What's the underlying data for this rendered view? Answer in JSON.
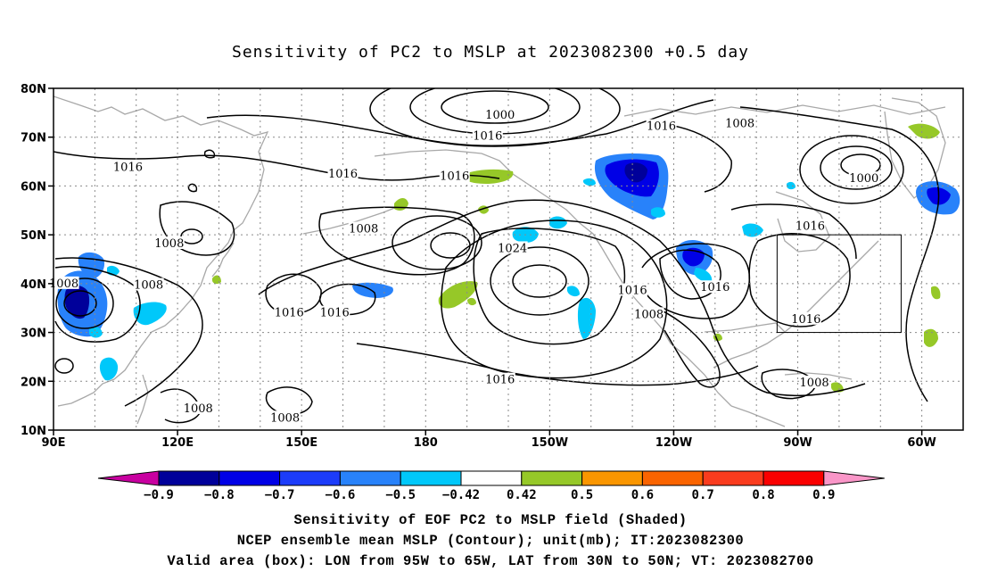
{
  "title": "Sensitivity of PC2 to MSLP at 2023082300 +0.5 day",
  "map": {
    "lat_labels": [
      "80N",
      "70N",
      "60N",
      "50N",
      "40N",
      "30N",
      "20N",
      "10N"
    ],
    "lon_labels": [
      "90E",
      "120E",
      "150E",
      "180",
      "150W",
      "120W",
      "90W",
      "60W"
    ],
    "lon_range_deg_east": [
      90,
      310
    ],
    "lat_range": [
      10,
      80
    ],
    "grid": "dotted every 10 degrees",
    "coastline_color": "#a8a8a8",
    "contour_color": "#000000",
    "valid_area_box": {
      "lon_west": -95,
      "lon_east": -65,
      "lat_south": 30,
      "lat_north": 50
    },
    "contour_labels": [
      {
        "text": "1000",
        "lon": 198,
        "lat": 74.5
      },
      {
        "text": "1016",
        "lon": 195,
        "lat": 70.2
      },
      {
        "text": "1016",
        "lon": 237,
        "lat": 72.2
      },
      {
        "text": "1008",
        "lon": 256,
        "lat": 72.8
      },
      {
        "text": "1000",
        "lon": 286,
        "lat": 61.5
      },
      {
        "text": "1016",
        "lon": 108,
        "lat": 63.8
      },
      {
        "text": "1016",
        "lon": 160,
        "lat": 62.5
      },
      {
        "text": "1016",
        "lon": 187,
        "lat": 62.0
      },
      {
        "text": "1016",
        "lon": 273,
        "lat": 51.8
      },
      {
        "text": "1008",
        "lon": 165,
        "lat": 51.2
      },
      {
        "text": "1008",
        "lon": 118,
        "lat": 48.2
      },
      {
        "text": "1008",
        "lon": 92.5,
        "lat": 40.0
      },
      {
        "text": "1008",
        "lon": 113,
        "lat": 39.7
      },
      {
        "text": "1024",
        "lon": 201,
        "lat": 47.2
      },
      {
        "text": "1016",
        "lon": 230,
        "lat": 38.6
      },
      {
        "text": "1016",
        "lon": 250,
        "lat": 39.2
      },
      {
        "text": "1008",
        "lon": 234,
        "lat": 33.7
      },
      {
        "text": "1016",
        "lon": 272,
        "lat": 32.7
      },
      {
        "text": "1016",
        "lon": 147,
        "lat": 34.0
      },
      {
        "text": "1016",
        "lon": 158,
        "lat": 34.0
      },
      {
        "text": "1016",
        "lon": 198,
        "lat": 20.3
      },
      {
        "text": "1008",
        "lon": 274,
        "lat": 19.7
      },
      {
        "text": "1008",
        "lon": 125,
        "lat": 14.4
      },
      {
        "text": "1008",
        "lon": 146,
        "lat": 12.5
      }
    ]
  },
  "colorbar": {
    "labels": [
      "−0.9",
      "−0.8",
      "−0.7",
      "−0.6",
      "−0.5",
      "−0.42",
      "0.42",
      "0.5",
      "0.6",
      "0.7",
      "0.8",
      "0.9"
    ],
    "colors": [
      "#c800a0",
      "#00009a",
      "#0000e6",
      "#1c3cfa",
      "#2882fa",
      "#00c8fa",
      "#ffffff",
      "#96c828",
      "#fa9600",
      "#fa6400",
      "#fa3c1e",
      "#fa0000",
      "#fa96c8"
    ]
  },
  "captions": {
    "line1": "Sensitivity of EOF PC2 to MSLP field (Shaded)",
    "line2": "NCEP ensemble mean MSLP (Contour); unit(mb); IT:2023082300",
    "line3": "Valid area (box): LON from 95W to 65W, LAT from 30N to 50N; VT: 2023082700"
  }
}
